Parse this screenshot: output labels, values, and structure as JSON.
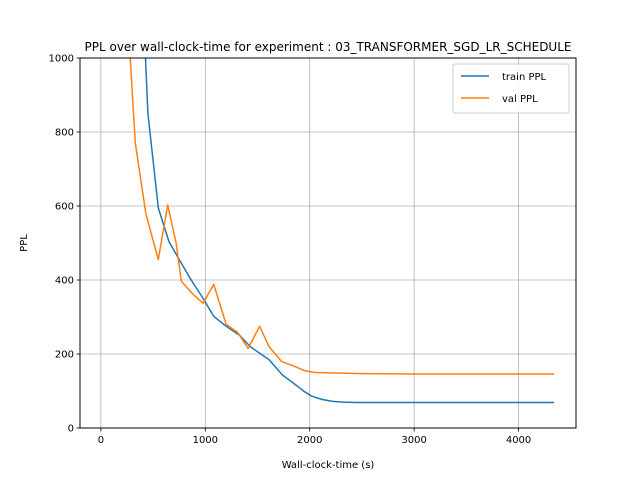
{
  "chart_data": {
    "type": "line",
    "title": "PPL over wall-clock-time for experiment : 03_TRANSFORMER_SGD_LR_SCHEDULE",
    "xlabel": "Wall-clock-time (s)",
    "ylabel": "PPL",
    "xlim": [
      -200,
      4550
    ],
    "ylim": [
      0,
      1000
    ],
    "xticks": [
      0,
      1000,
      2000,
      3000,
      4000
    ],
    "yticks": [
      0,
      200,
      400,
      600,
      800,
      1000
    ],
    "xtick_labels": [
      "0",
      "1000",
      "2000",
      "3000",
      "4000"
    ],
    "ytick_labels": [
      "0",
      "200",
      "400",
      "600",
      "800",
      "1000"
    ],
    "grid": true,
    "legend_position": "upper right",
    "series": [
      {
        "name": "train PPL",
        "color": "#1f77b4",
        "x": [
          420,
          450,
          550,
          650,
          750,
          880,
          980,
          1080,
          1200,
          1330,
          1430,
          1610,
          1740,
          1850,
          1950,
          2020,
          2120,
          2220,
          2320,
          2450,
          2600,
          3000,
          3500,
          4000,
          4340
        ],
        "y": [
          1050,
          850,
          595,
          505,
          455,
          393,
          350,
          302,
          275,
          250,
          220,
          185,
          143,
          120,
          98,
          86,
          77,
          72,
          70,
          69,
          69,
          69,
          69,
          69,
          69
        ]
      },
      {
        "name": "val PPL",
        "color": "#ff7f0e",
        "x": [
          270,
          330,
          430,
          550,
          640,
          720,
          770,
          880,
          980,
          1080,
          1200,
          1310,
          1410,
          1520,
          1610,
          1730,
          1850,
          1950,
          2050,
          2200,
          2500,
          3000,
          3500,
          4000,
          4340
        ],
        "y": [
          1050,
          770,
          580,
          455,
          603,
          500,
          397,
          362,
          337,
          388,
          280,
          258,
          215,
          275,
          220,
          180,
          167,
          155,
          150,
          149,
          147,
          146,
          146,
          146,
          146
        ]
      }
    ]
  }
}
